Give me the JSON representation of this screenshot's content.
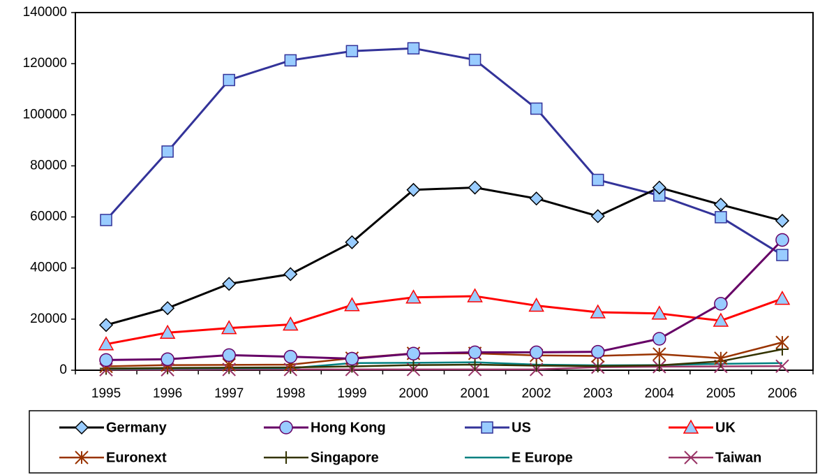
{
  "chart_data": {
    "type": "line",
    "categories": [
      "1995",
      "1996",
      "1997",
      "1998",
      "1999",
      "2000",
      "2001",
      "2002",
      "2003",
      "2004",
      "2005",
      "2006"
    ],
    "ylim": [
      0,
      140000
    ],
    "yticks": [
      0,
      20000,
      40000,
      60000,
      80000,
      100000,
      120000,
      140000
    ],
    "grid": false,
    "marker_fill": "#99ccff",
    "series": [
      {
        "name": "Germany",
        "color": "#000000",
        "marker": "diamond",
        "values": [
          17700,
          24300,
          33800,
          37600,
          50100,
          70600,
          71500,
          67200,
          60300,
          71500,
          64800,
          58500
        ]
      },
      {
        "name": "Hong Kong",
        "color": "#660066",
        "marker": "circle",
        "values": [
          4000,
          4300,
          5900,
          5300,
          4500,
          6500,
          7000,
          7000,
          7200,
          12300,
          26000,
          51000
        ]
      },
      {
        "name": "US",
        "color": "#333399",
        "marker": "square",
        "values": [
          58800,
          85600,
          113600,
          121300,
          124900,
          126000,
          121500,
          102400,
          74500,
          68400,
          59900,
          45100
        ]
      },
      {
        "name": "UK",
        "color": "#ff0000",
        "marker": "triangle",
        "values": [
          10200,
          14700,
          16500,
          17900,
          25500,
          28500,
          29000,
          25300,
          22700,
          22200,
          19400,
          28000
        ]
      },
      {
        "name": "Euronext",
        "color": "#993300",
        "marker": "star",
        "values": [
          1500,
          2000,
          2100,
          2200,
          4700,
          6600,
          6600,
          5800,
          5600,
          6300,
          4700,
          10900
        ]
      },
      {
        "name": "Singapore",
        "color": "#333300",
        "marker": "plus",
        "values": [
          700,
          900,
          1000,
          1100,
          1500,
          2000,
          2200,
          1800,
          1600,
          1900,
          3500,
          8200
        ]
      },
      {
        "name": "E Europe",
        "color": "#008080",
        "marker": "none",
        "values": [
          500,
          700,
          800,
          800,
          2800,
          2900,
          3100,
          2200,
          1900,
          2000,
          2500,
          2800
        ]
      },
      {
        "name": "Taiwan",
        "color": "#993366",
        "marker": "x",
        "values": [
          200,
          200,
          300,
          300,
          300,
          300,
          300,
          300,
          1200,
          1400,
          1500,
          1600
        ]
      }
    ]
  }
}
